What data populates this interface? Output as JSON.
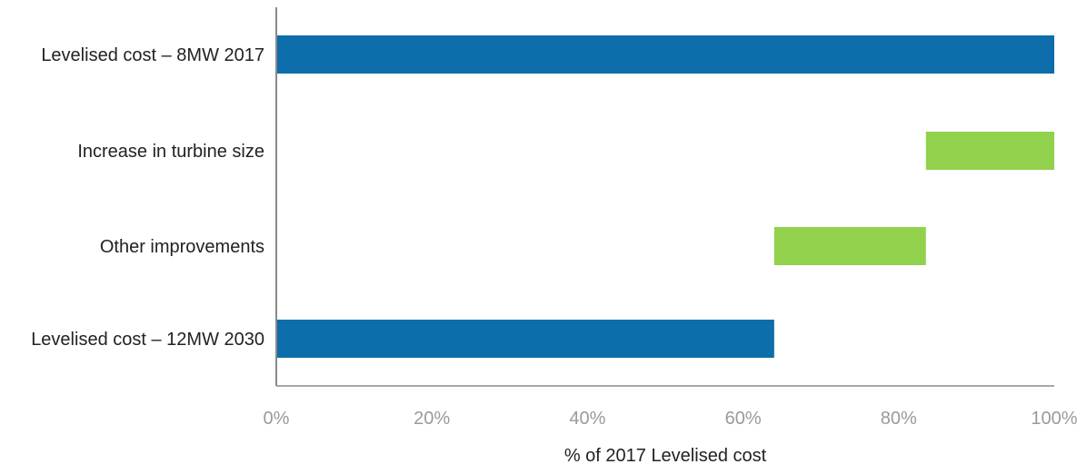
{
  "chart_data": {
    "type": "bar",
    "subtype": "waterfall-horizontal",
    "title": "",
    "xlabel": "% of 2017 Levelised cost",
    "ylabel": "",
    "xlim": [
      0,
      100
    ],
    "x_tick_labels": [
      "0%",
      "20%",
      "40%",
      "60%",
      "80%",
      "100%"
    ],
    "x_tick_values": [
      0,
      20,
      40,
      60,
      80,
      100
    ],
    "grid": false,
    "legend": "none",
    "categories": [
      "Levelised cost – 8MW 2017",
      "Increase in turbine size",
      "Other improvements",
      "Levelised cost – 12MW 2030"
    ],
    "bars": [
      {
        "category": "Levelised cost – 8MW 2017",
        "start": 0,
        "end": 100,
        "kind": "total"
      },
      {
        "category": "Increase in turbine size",
        "start": 83.5,
        "end": 100,
        "kind": "change"
      },
      {
        "category": "Other improvements",
        "start": 64,
        "end": 83.5,
        "kind": "change"
      },
      {
        "category": "Levelised cost – 12MW 2030",
        "start": 0,
        "end": 64,
        "kind": "total"
      }
    ],
    "colors": {
      "total": "#0d6eab",
      "change": "#92d14b",
      "axis": "#8a8a8a",
      "tick_text": "#9a9a9a",
      "label_text": "#222222"
    }
  }
}
